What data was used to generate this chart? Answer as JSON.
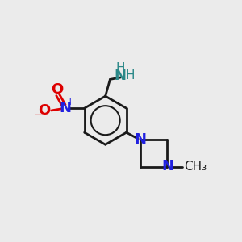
{
  "background_color": "#ebebeb",
  "bond_color": "#1a1a1a",
  "N_color": "#2020e0",
  "O_color": "#dd0000",
  "NH2_color": "#2a8888",
  "bond_lw": 2.0,
  "figsize": [
    3.0,
    3.0
  ],
  "dpi": 100,
  "xlim": [
    0,
    10
  ],
  "ylim": [
    0,
    10
  ]
}
